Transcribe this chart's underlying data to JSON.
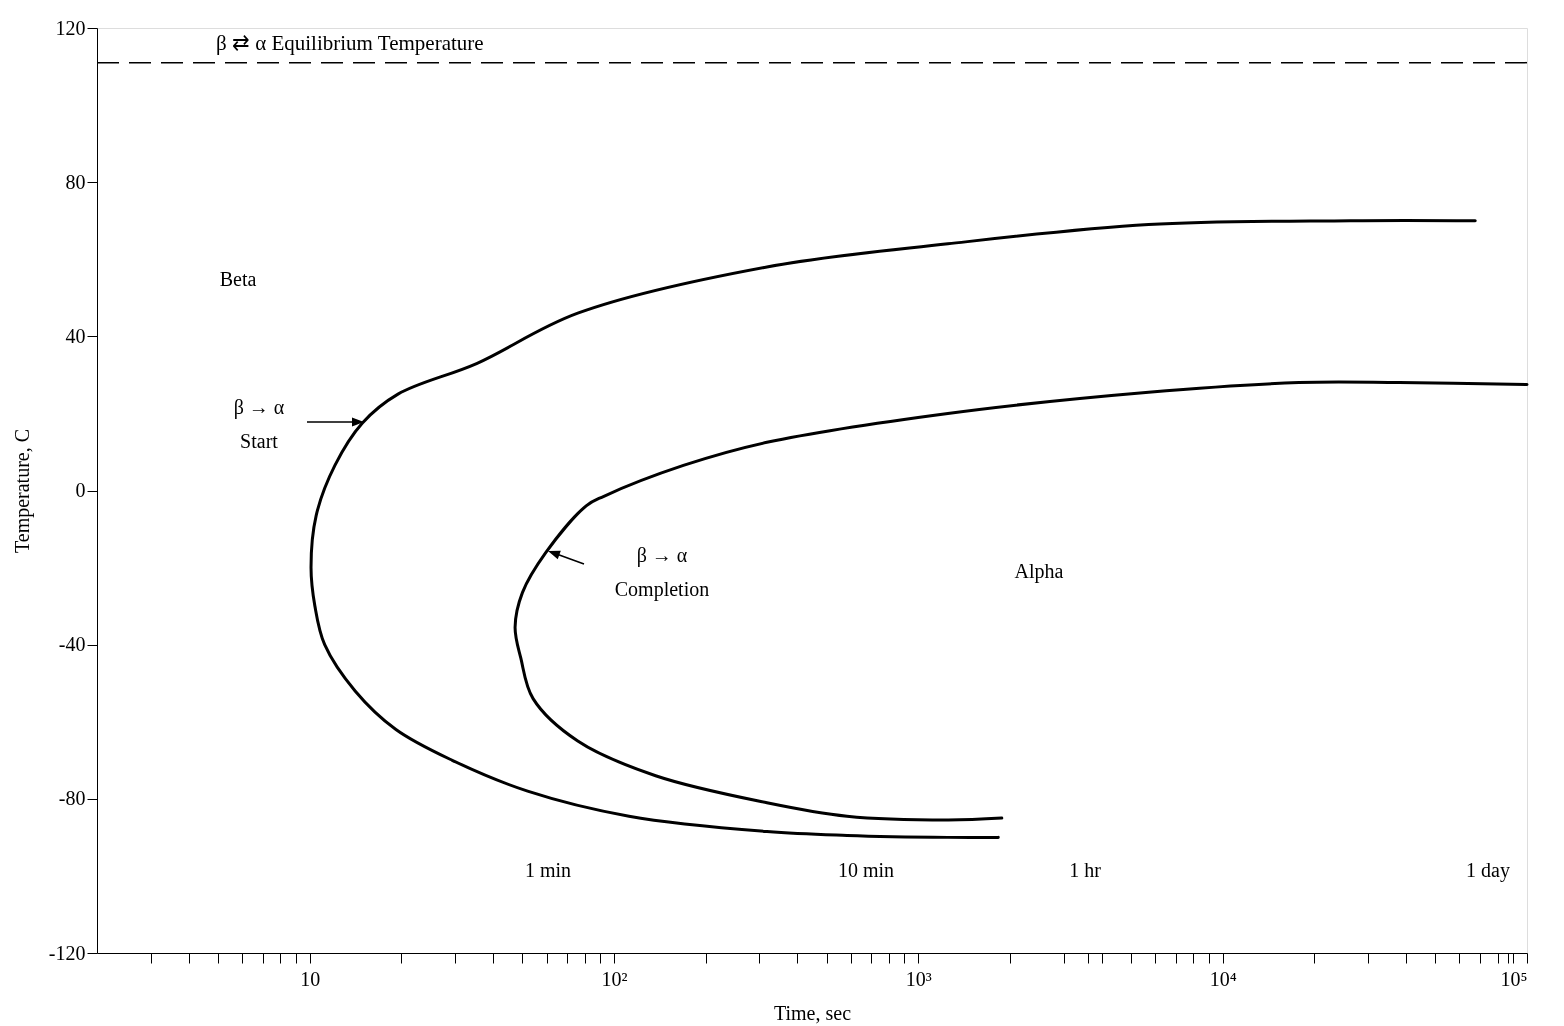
{
  "chart_data": {
    "type": "line",
    "xlabel": "Time, sec",
    "ylabel": "Temperature, C",
    "log": "x",
    "xlim": [
      2,
      100000
    ],
    "ylim": [
      -120,
      120
    ],
    "xticks": [
      {
        "value": 3,
        "label": null
      },
      {
        "value": 4,
        "label": null
      },
      {
        "value": 5,
        "label": null
      },
      {
        "value": 6,
        "label": null
      },
      {
        "value": 7,
        "label": null
      },
      {
        "value": 8,
        "label": null
      },
      {
        "value": 9,
        "label": null
      },
      10,
      {
        "value": 20,
        "label": null
      },
      {
        "value": 30,
        "label": null
      },
      {
        "value": 40,
        "label": null
      },
      {
        "value": 50,
        "label": null
      },
      {
        "value": 60,
        "label": null
      },
      {
        "value": 70,
        "label": null
      },
      {
        "value": 80,
        "label": null
      },
      {
        "value": 90,
        "label": null
      },
      {
        "value": 100,
        "label": "10²"
      },
      {
        "value": 200,
        "label": null
      },
      {
        "value": 300,
        "label": null
      },
      {
        "value": 400,
        "label": null
      },
      {
        "value": 500,
        "label": null
      },
      {
        "value": 600,
        "label": null
      },
      {
        "value": 700,
        "label": null
      },
      {
        "value": 800,
        "label": null
      },
      {
        "value": 900,
        "label": null
      },
      {
        "value": 1000,
        "label": "10³"
      },
      {
        "value": 2000,
        "label": null
      },
      {
        "value": 3000,
        "label": null
      },
      {
        "value": 3600,
        "label": null
      },
      {
        "value": 4000,
        "label": null
      },
      {
        "value": 5000,
        "label": null
      },
      {
        "value": 6000,
        "label": null
      },
      {
        "value": 7000,
        "label": null
      },
      {
        "value": 8000,
        "label": null
      },
      {
        "value": 9000,
        "label": null
      },
      {
        "value": 10000,
        "label": "10⁴"
      },
      {
        "value": 20000,
        "label": null
      },
      {
        "value": 30000,
        "label": null
      },
      {
        "value": 40000,
        "label": null
      },
      {
        "value": 50000,
        "label": null
      },
      {
        "value": 60000,
        "label": null
      },
      {
        "value": 70000,
        "label": null
      },
      {
        "value": 80000,
        "label": null
      },
      {
        "value": 86400,
        "label": null
      },
      {
        "value": 90000,
        "label": null
      },
      {
        "value": 100000,
        "label": "10⁵"
      }
    ],
    "yticks": [
      -120,
      -80,
      -40,
      0,
      40,
      80,
      120
    ],
    "grid": false,
    "legend": false,
    "marker": "none",
    "line_style": "solid",
    "series": [
      {
        "color": "#000000",
        "x": [
          67600,
          26300,
          5710,
          1250,
          318,
          76,
          35.5,
          19.5,
          14.9,
          12.1,
          10.5,
          10.1,
          10.4,
          11.2,
          14.1,
          19.2,
          29.4,
          52,
          112,
          318,
          583,
          1250,
          1830
        ],
        "values": [
          70,
          70,
          69,
          64,
          58,
          46,
          33,
          25,
          17.5,
          6.5,
          -6.5,
          -20,
          -30,
          -40,
          -52,
          -62,
          -70,
          -78,
          -84.5,
          -88.5,
          -89.5,
          -90,
          -90
        ]
      },
      {
        "color": "#000000",
        "x": [
          100000,
          38000,
          17800,
          5710,
          1250,
          318,
          169,
          92.6,
          81,
          59.8,
          50,
          47.3,
          49.4,
          54.2,
          76,
          137,
          318,
          583,
          1250,
          1880
        ],
        "values": [
          27.5,
          28,
          28,
          25.5,
          20,
          12.5,
          6.5,
          -1.5,
          -4,
          -16,
          -26.5,
          -35.5,
          -43.5,
          -54,
          -65,
          -74,
          -81,
          -84.5,
          -85.5,
          -85
        ]
      }
    ],
    "ref_lines": [
      {
        "axis": "y",
        "value": 111,
        "label": "β ⇄ α Equilibrium Temperature",
        "line_style": "dashed",
        "color": "#000000"
      }
    ],
    "annotations": [
      "Beta",
      "Alpha",
      "β → α\nStart",
      "β → α\nCompletion",
      "1 min",
      "10 min",
      "1 hr",
      "1 day"
    ]
  }
}
